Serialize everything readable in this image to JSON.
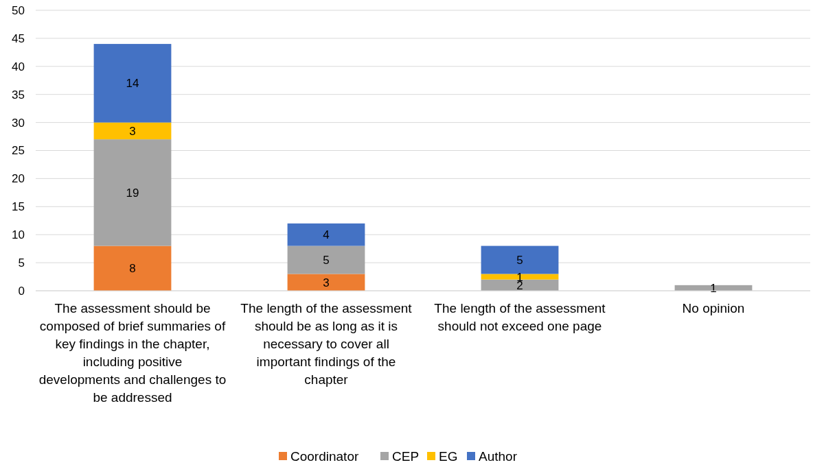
{
  "chart_data": {
    "type": "bar",
    "stacked": true,
    "categories": [
      "The assessment should be composed of brief summaries of key findings in the chapter, including positive developments and challenges to be addressed",
      "The length of the assessment should be as long as it is necessary to cover all important findings of the chapter",
      "The length of the assessment should not exceed one page",
      "No opinion"
    ],
    "series": [
      {
        "name": "Coordinator",
        "color": "#ed7d31",
        "values": [
          8,
          3,
          null,
          null
        ]
      },
      {
        "name": "CEP",
        "color": "#a5a5a5",
        "values": [
          19,
          5,
          2,
          1
        ]
      },
      {
        "name": "EG",
        "color": "#ffc000",
        "values": [
          3,
          null,
          1,
          null
        ]
      },
      {
        "name": "Author",
        "color": "#4472c4",
        "values": [
          14,
          4,
          5,
          null
        ]
      }
    ],
    "ylim": [
      0,
      50
    ],
    "yticks": [
      0,
      5,
      10,
      15,
      20,
      25,
      30,
      35,
      40,
      45,
      50
    ],
    "grid": "y",
    "legend": "bottom",
    "data_labels": true
  }
}
